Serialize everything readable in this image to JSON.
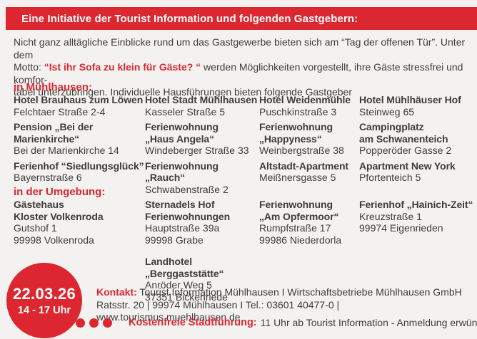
{
  "colors": {
    "accent_red": "#dd2730",
    "body_text": "#3e3d3c",
    "background": "#f3f2f0",
    "banner_text": "#ffffff"
  },
  "banner": {
    "title": "Eine Initiative der Tourist Information und folgenden Gastgebern:"
  },
  "intro": {
    "before": "Nicht ganz alltägliche Einblicke rund um das Gastgewerbe bieten sich am “Tag der offenen Tür”. Unter dem\nMotto: ",
    "highlight": "“Ist ihr Sofa zu klein für Gäste? “",
    "after": " werden Möglichkeiten vorgestellt, ihre Gäste stressfrei und komfor-\ntabel unterzubringen. Individuelle Hausführungen bieten folgende Gastgeber"
  },
  "sections": [
    {
      "heading": "in Mühlhausen:",
      "entries": [
        {
          "name": "Hotel Brauhaus zum Löwen",
          "address": "Felchtaer Straße 2-4"
        },
        {
          "name": "Hotel Stadt Mühlhausen",
          "address": "Kasseler Straße 5"
        },
        {
          "name": "Hotel Weidenmühle",
          "address": "Puschkinstraße 3"
        },
        {
          "name": "Hotel Mühlhäuser Hof",
          "address": "Steinweg 65"
        },
        {
          "name": "Pension „Bei der\nMarienkirche“",
          "address": "Bei der Marienkirche 14"
        },
        {
          "name": "Ferienwohnung\n„Haus Angela“",
          "address": "Windeberger Straße 33"
        },
        {
          "name": "Ferienwohnung\n„Happyness“",
          "address": "Weinbergstraße 38"
        },
        {
          "name": "Campingplatz\nam Schwanenteich",
          "address": "Popperöder Gasse 2"
        },
        {
          "name": "Ferienhof “Siedlungsglück”",
          "address": "Bayernstraße 6"
        },
        {
          "name": "Ferienwohnung „Rauch“",
          "address": "Schwabenstraße 2"
        },
        {
          "name": "Altstadt-Apartment",
          "address": "Meißnersgasse 5"
        },
        {
          "name": "Apartment New York",
          "address": "Pfortenteich 5"
        }
      ]
    },
    {
      "heading": "in der Umgebung:",
      "entries": [
        {
          "name": "Gästehaus\nKloster Volkenroda",
          "address": "Gutshof 1\n99998 Volkenroda"
        },
        {
          "name": "Sternadels Hof\nFerienwohnungen",
          "address": "Hauptstraße 39a\n99998 Grabe"
        },
        {
          "name": "Ferienwohnung\n„Am Opfermoor“",
          "address": "Rumpfstraße 17\n99986 Niederdorla"
        },
        {
          "name": "Ferienhof „Hainich-Zeit“",
          "address": "Kreuzstraße 1\n99974 Eigenrieden"
        }
      ],
      "extra_entry": {
        "name": "Landhotel  „Berggaststätte“",
        "address": "Anröder Weg 5\n37351 Bickenriede"
      }
    }
  ],
  "event_badge": {
    "date": "22.03.26",
    "time": "14 - 17 Uhr"
  },
  "contact": {
    "label": "Kontakt:",
    "line1": " Tourist Information Mühlhausen I Wirtschaftsbetriebe Mühlhausen GmbH",
    "line2": "Ratsstr. 20 | 99974 Mühlhausen I Tel.: 03601 40477-0 | www.tourismus.muehlhausen.de"
  },
  "city_tour": {
    "label": "Kostenfreie Stadtführung:",
    "text": "11 Uhr ab Tourist Information - Anmeldung erwünscht!"
  }
}
